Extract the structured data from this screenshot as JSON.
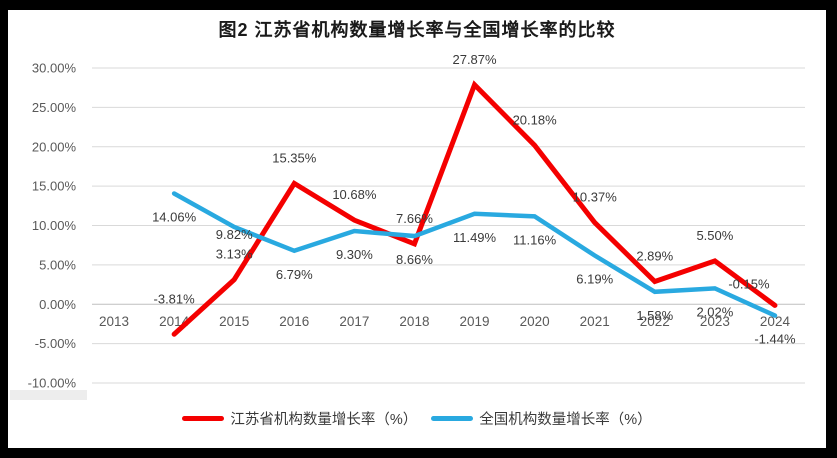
{
  "title": "图2  江苏省机构数量增长率与全国增长率的比较",
  "colors": {
    "jiangsu_line": "#F40000",
    "national_line": "#29A9E0",
    "gridline": "#D9D9D9",
    "zero_axis_line": "#BFBFBF",
    "axis_text": "#595959",
    "data_label_text": "#3a3a3a",
    "page_background": "#ffffff",
    "outer_background": "#000000"
  },
  "chart_data": {
    "type": "line",
    "title": "图2  江苏省机构数量增长率与全国增长率的比较",
    "categories": [
      "2013",
      "2014",
      "2015",
      "2016",
      "2017",
      "2018",
      "2019",
      "2020",
      "2021",
      "2022",
      "2023",
      "2024"
    ],
    "series": [
      {
        "name": "江苏省机构数量增长率（%）",
        "color": "#F40000",
        "values": [
          null,
          -3.81,
          3.13,
          15.35,
          10.68,
          7.66,
          27.87,
          20.18,
          10.37,
          2.89,
          5.5,
          -0.15
        ]
      },
      {
        "name": "全国机构数量增长率（%）",
        "color": "#29A9E0",
        "values": [
          null,
          14.06,
          9.82,
          6.79,
          9.3,
          8.66,
          11.49,
          11.16,
          6.19,
          1.58,
          2.02,
          -1.44
        ]
      }
    ],
    "data_labels": [
      [
        null,
        "-3.81%",
        "3.13%",
        "15.35%",
        "10.68%",
        "7.66%",
        "27.87%",
        "20.18%",
        "10.37%",
        "2.89%",
        "5.50%",
        "-0.15%"
      ],
      [
        null,
        "14.06%",
        "9.82%",
        "6.79%",
        "9.30%",
        "8.66%",
        "11.49%",
        "11.16%",
        "6.19%",
        "1.58%",
        "2.02%",
        "-1.44%"
      ]
    ],
    "y_axis": {
      "ticks": [
        "30.00%",
        "25.00%",
        "20.00%",
        "15.00%",
        "10.00%",
        "5.00%",
        "0.00%",
        "-5.00%",
        "-10.00%"
      ],
      "max": 30,
      "min": -10,
      "step": 5
    },
    "grid": true,
    "legend_position": "bottom"
  },
  "legend": [
    {
      "label": "江苏省机构数量增长率（%）"
    },
    {
      "label": "全国机构数量增长率（%）"
    }
  ]
}
